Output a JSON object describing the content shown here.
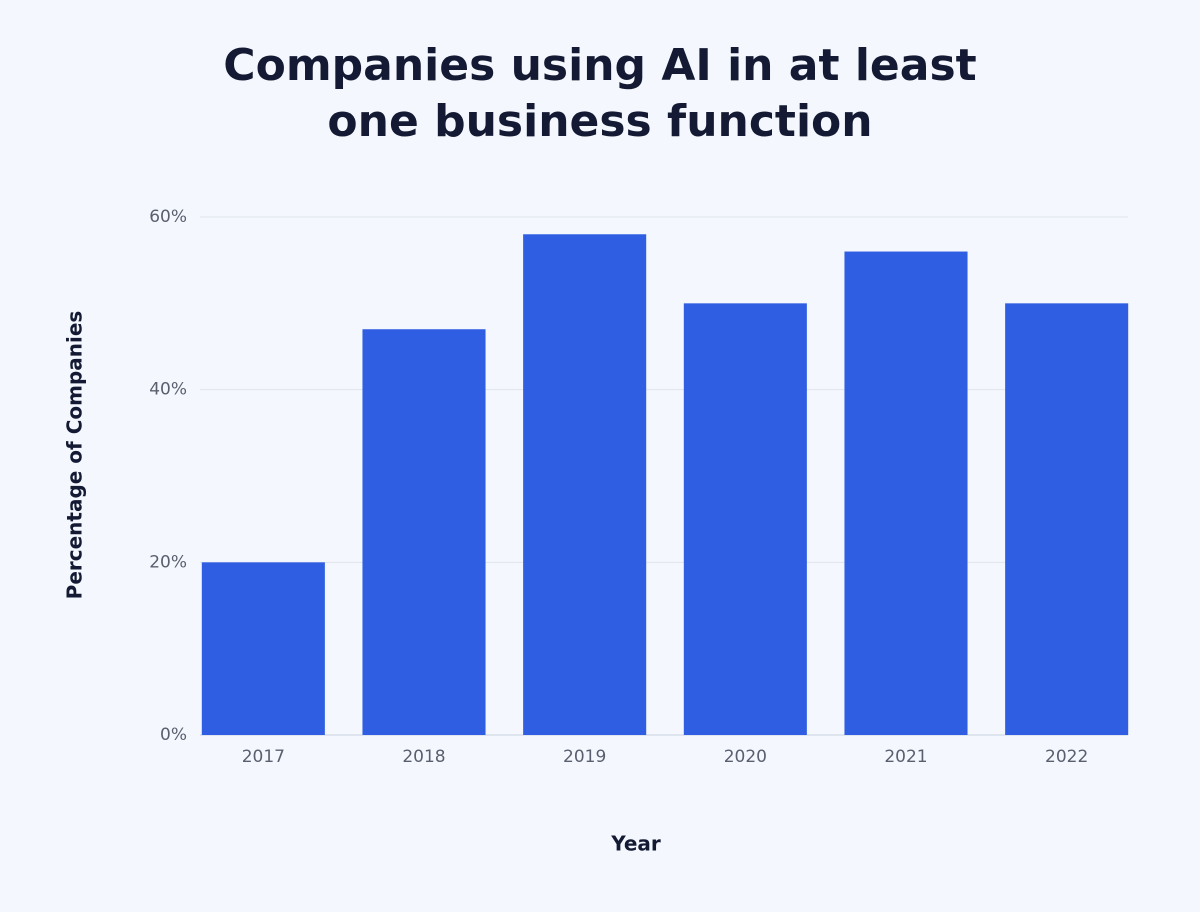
{
  "chart_data": {
    "type": "bar",
    "title": "Companies using AI in at least one business function",
    "x_label": "Year",
    "y_label": "Percentage of Companies",
    "categories": [
      "2017",
      "2018",
      "2019",
      "2020",
      "2021",
      "2022"
    ],
    "values": [
      20,
      47,
      58,
      50,
      56,
      50
    ],
    "color": "#2f5ee3",
    "ylim": [
      0,
      60
    ],
    "yticks": [
      {
        "value": 0,
        "label": "0%"
      },
      {
        "value": 20,
        "label": "20%"
      },
      {
        "value": 40,
        "label": "40%"
      },
      {
        "value": 60,
        "label": "60%"
      }
    ],
    "grid": true
  }
}
